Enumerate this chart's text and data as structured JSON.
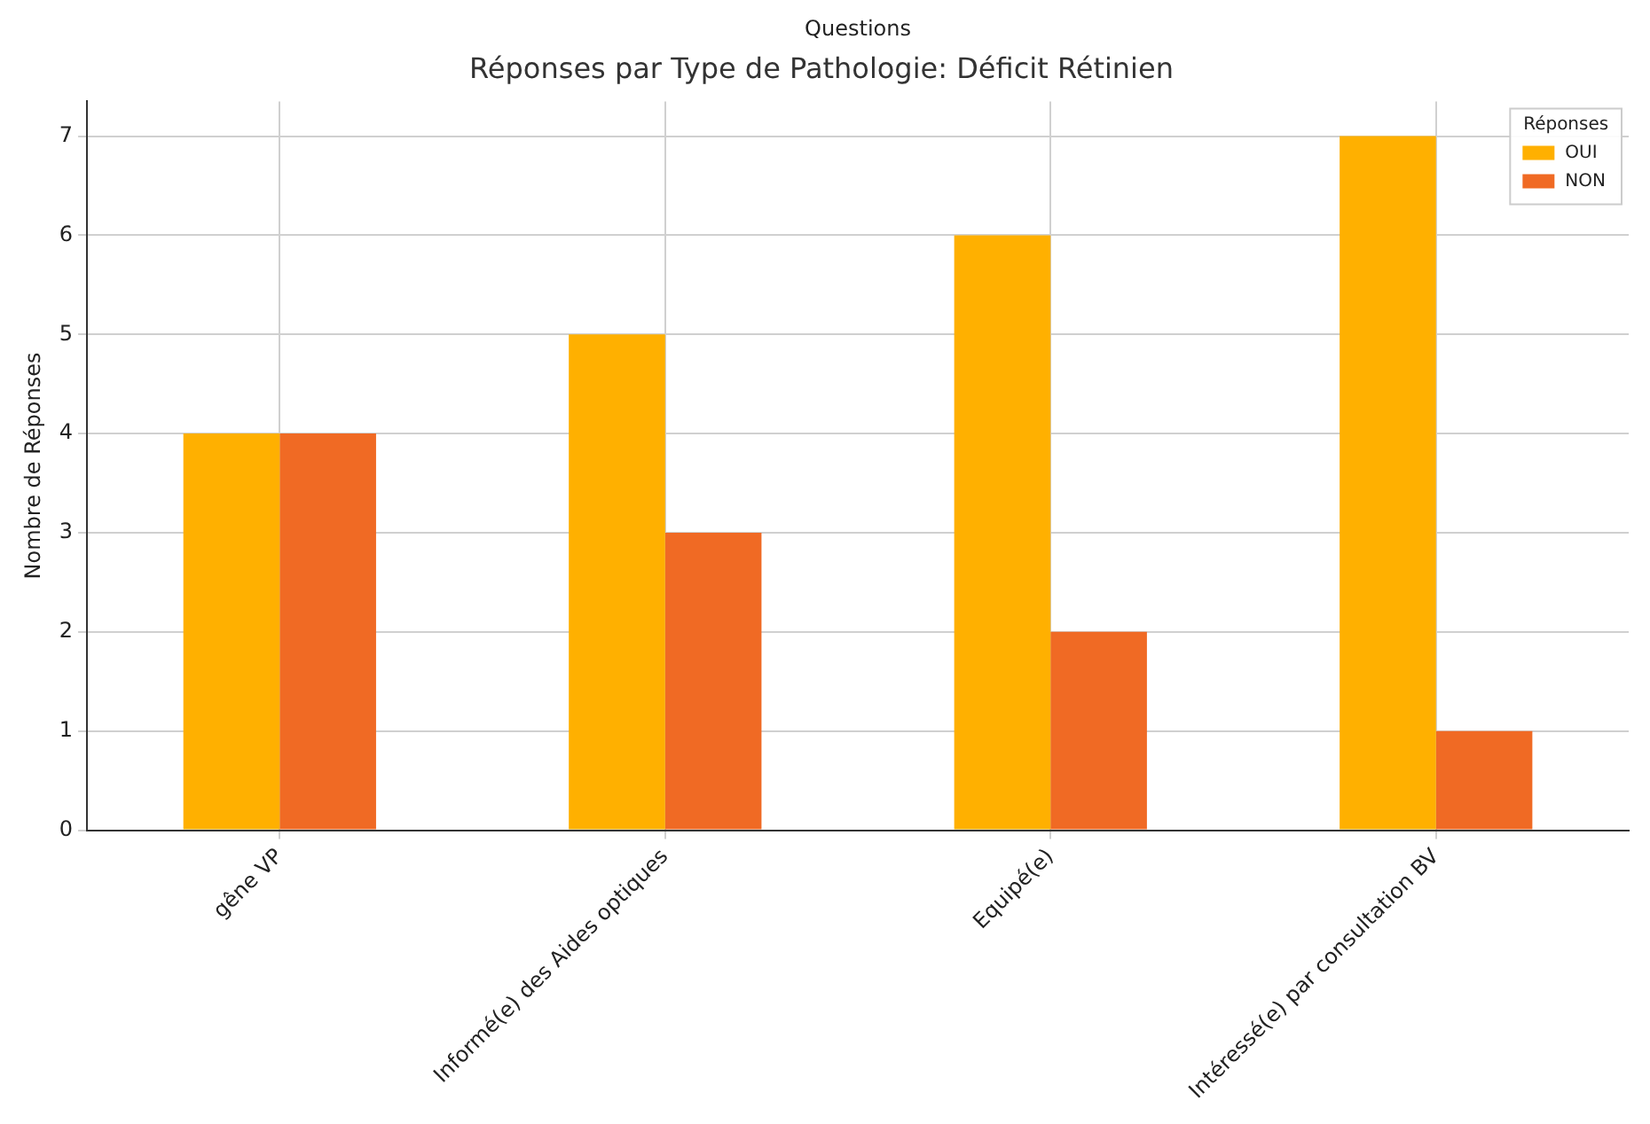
{
  "chart_data": {
    "type": "bar",
    "title": "Réponses par Type de Pathologie: Déficit Rétinien",
    "xlabel": "Questions",
    "ylabel": "Nombre de Réponses",
    "legend_title": "Réponses",
    "categories": [
      "gêne VP",
      "Informé(e) des Aides optiques",
      "Equipé(e)",
      "Intéressé(e) par consultation BV"
    ],
    "series": [
      {
        "name": "OUI",
        "color": "#ffb000",
        "values": [
          4,
          5,
          6,
          7
        ]
      },
      {
        "name": "NON",
        "color": "#f06a24",
        "values": [
          4,
          3,
          2,
          1
        ]
      }
    ],
    "ylim": [
      0,
      7.35
    ],
    "yticks": [
      0,
      1,
      2,
      3,
      4,
      5,
      6,
      7
    ],
    "grid": true,
    "legend": "top right"
  }
}
